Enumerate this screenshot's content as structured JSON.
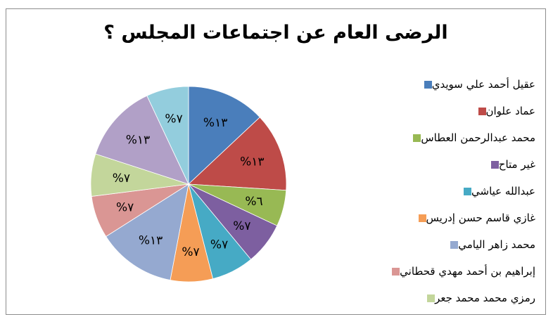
{
  "chart_data": {
    "type": "pie",
    "title": "الرضى العام عن اجتماعات المجلس ؟",
    "legend_position": "right",
    "slices": [
      {
        "name": "عقيل أحمد علي سويدي",
        "value": 13,
        "label": "%١٣",
        "color": "#4a7ebb"
      },
      {
        "name": "عماد علوان",
        "value": 13,
        "label": "%١٣",
        "color": "#be4b48"
      },
      {
        "name": "محمد عبدالرحمن العطاس",
        "value": 6,
        "label": "%٦",
        "color": "#98b954"
      },
      {
        "name": "غير متاح",
        "value": 7,
        "label": "%٧",
        "color": "#7d5fa0"
      },
      {
        "name": "عبدالله عياشي",
        "value": 7,
        "label": "%٧",
        "color": "#46aac5"
      },
      {
        "name": "غازي قاسم حسن إدريس",
        "value": 7,
        "label": "%٧",
        "color": "#f59d56"
      },
      {
        "name": "محمد زاهر اليامي",
        "value": 13,
        "label": "%١٣",
        "color": "#95a9d0"
      },
      {
        "name": "إبراهيم بن أحمد مهدي قحطاني",
        "value": 7,
        "label": "%٧",
        "color": "#da9694"
      },
      {
        "name": "رمزي محمد محمد جعر",
        "value": 7,
        "label": "%٧",
        "color": "#c3d69b"
      },
      {
        "name": "",
        "value": 13,
        "label": "%١٣",
        "color": "#b1a0c7"
      },
      {
        "name": "",
        "value": 7,
        "label": "%٧",
        "color": "#93cddd"
      }
    ]
  }
}
